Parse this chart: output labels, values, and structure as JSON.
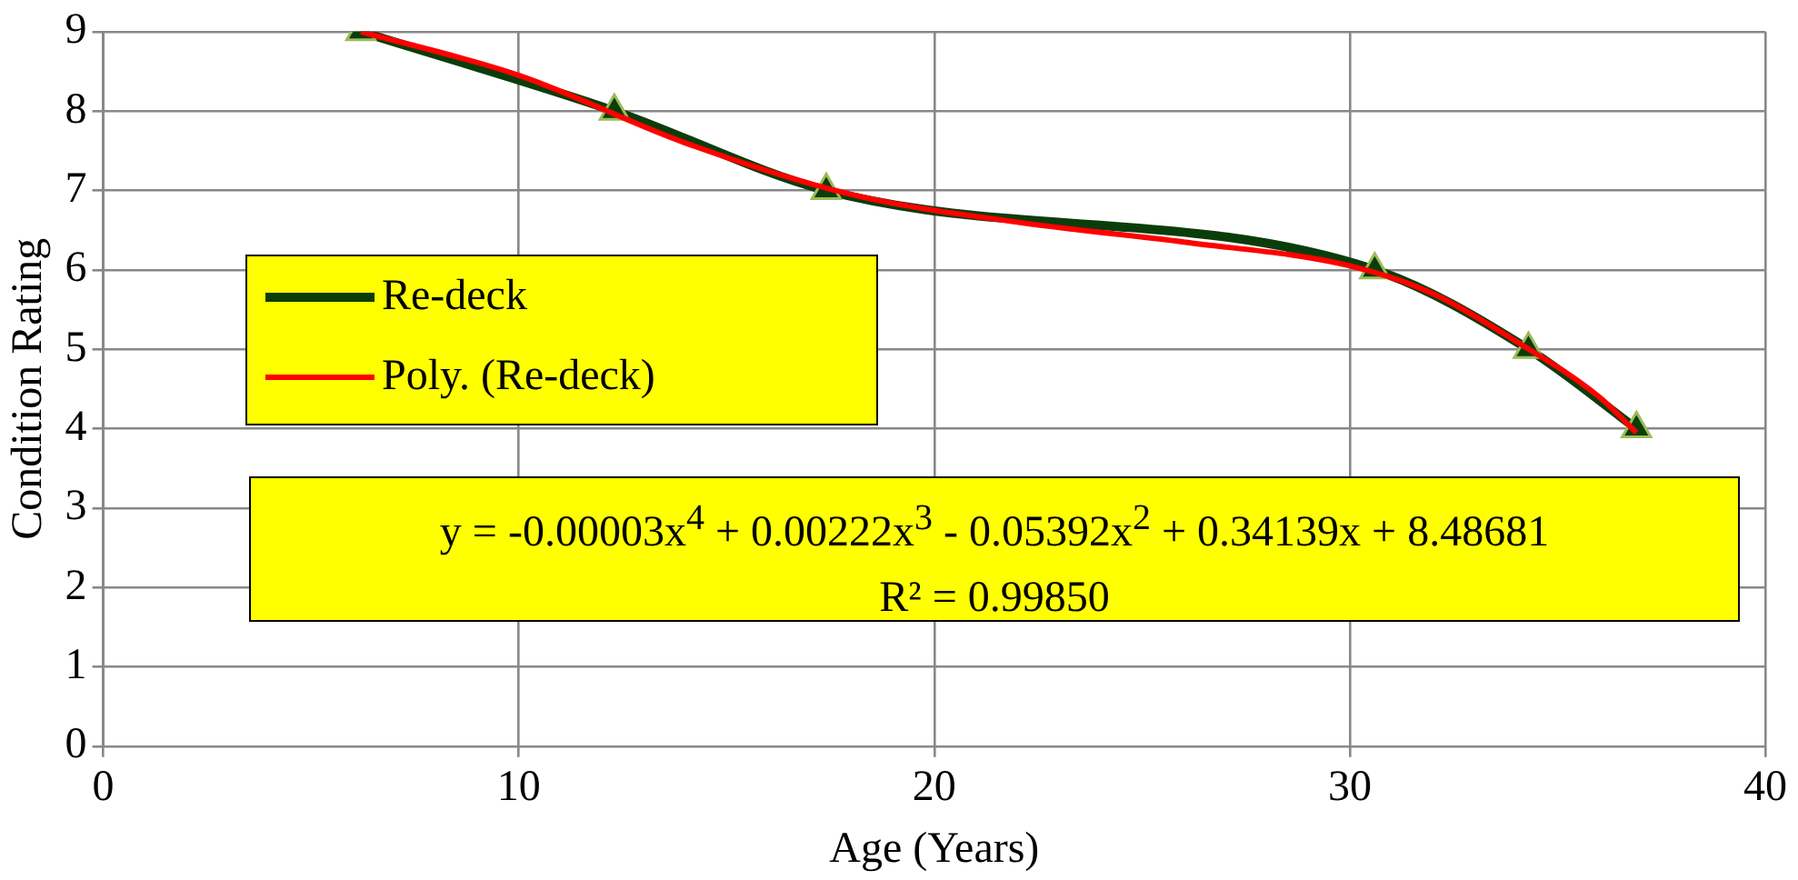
{
  "chart_data": {
    "type": "line",
    "xlabel": "Age (Years)",
    "ylabel": "Condition Rating",
    "xlim": [
      0,
      40
    ],
    "xticks": [
      0,
      10,
      20,
      30,
      40
    ],
    "ylim": [
      0,
      9
    ],
    "yticks": [
      0,
      1,
      2,
      3,
      4,
      5,
      6,
      7,
      8,
      9
    ],
    "grid": true,
    "legend": "center left",
    "marker": "triangle",
    "series": [
      {
        "name": "Re-deck",
        "color": "#0b3d0b",
        "x": [
          6.2,
          12.3,
          17.4,
          30.6,
          34.3,
          36.9
        ],
        "values": [
          9,
          8,
          7,
          6,
          5,
          4
        ]
      },
      {
        "name": "Poly. (Re-deck)",
        "color": "#ff0000",
        "marker": "none",
        "x": [
          6.2,
          10,
          14,
          18,
          22,
          26,
          30,
          32,
          34,
          36,
          36.9
        ],
        "values": [
          9,
          8.45,
          7.6,
          6.95,
          6.6,
          6.35,
          6.05,
          5.7,
          5.1,
          4.4,
          3.95
        ]
      }
    ],
    "annotations": [
      "y = -0.00003x$^{4}$ + 0.00222x$^{3}$ - 0.05392x$^{2}$ + 0.34139x + 8.48681",
      "R² = 0.99850"
    ]
  }
}
